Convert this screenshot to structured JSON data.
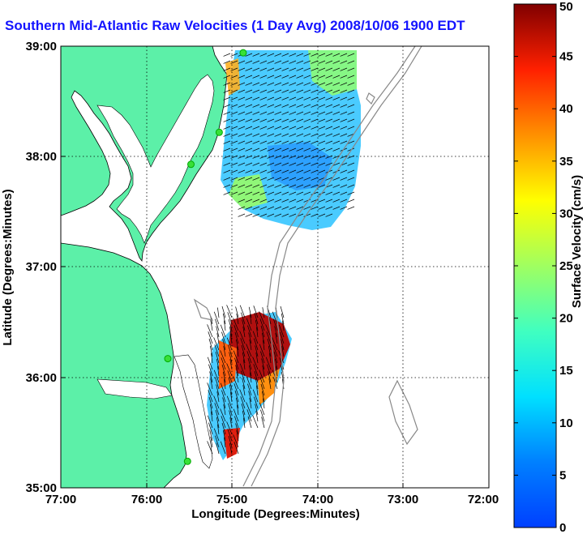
{
  "title": "Southern Mid-Atlantic Raw Velocities (1 Day Avg) 2008/10/06 1900 EDT",
  "x_axis": {
    "label": "Longitude (Degrees:Minutes)",
    "ticks": [
      "77:00",
      "76:00",
      "75:00",
      "74:00",
      "73:00",
      "72:00"
    ]
  },
  "y_axis": {
    "label": "Latitude (Degrees:Minutes)",
    "ticks": [
      "39:00",
      "38:00",
      "37:00",
      "36:00",
      "35:00"
    ]
  },
  "colorbar": {
    "label": "Surface Velocity (cm/s)",
    "min": 0,
    "max": 50,
    "ticks": [
      "50",
      "45",
      "40",
      "35",
      "30",
      "25",
      "20",
      "15",
      "10",
      "5",
      "0"
    ]
  },
  "colors": {
    "land": "#5cf0a8",
    "water": "#ffffff",
    "title": "#1414ff",
    "stations": "#38e038"
  },
  "map_extent": {
    "lon_min": -77,
    "lon_max": -72,
    "lat_min": 35,
    "lat_max": 39
  },
  "stations": [
    {
      "lon": -74.87,
      "lat": 38.94
    },
    {
      "lon": -75.15,
      "lat": 38.22
    },
    {
      "lon": -75.48,
      "lat": 37.93
    },
    {
      "lon": -75.75,
      "lat": 36.17
    },
    {
      "lon": -75.52,
      "lat": 35.24
    }
  ]
}
